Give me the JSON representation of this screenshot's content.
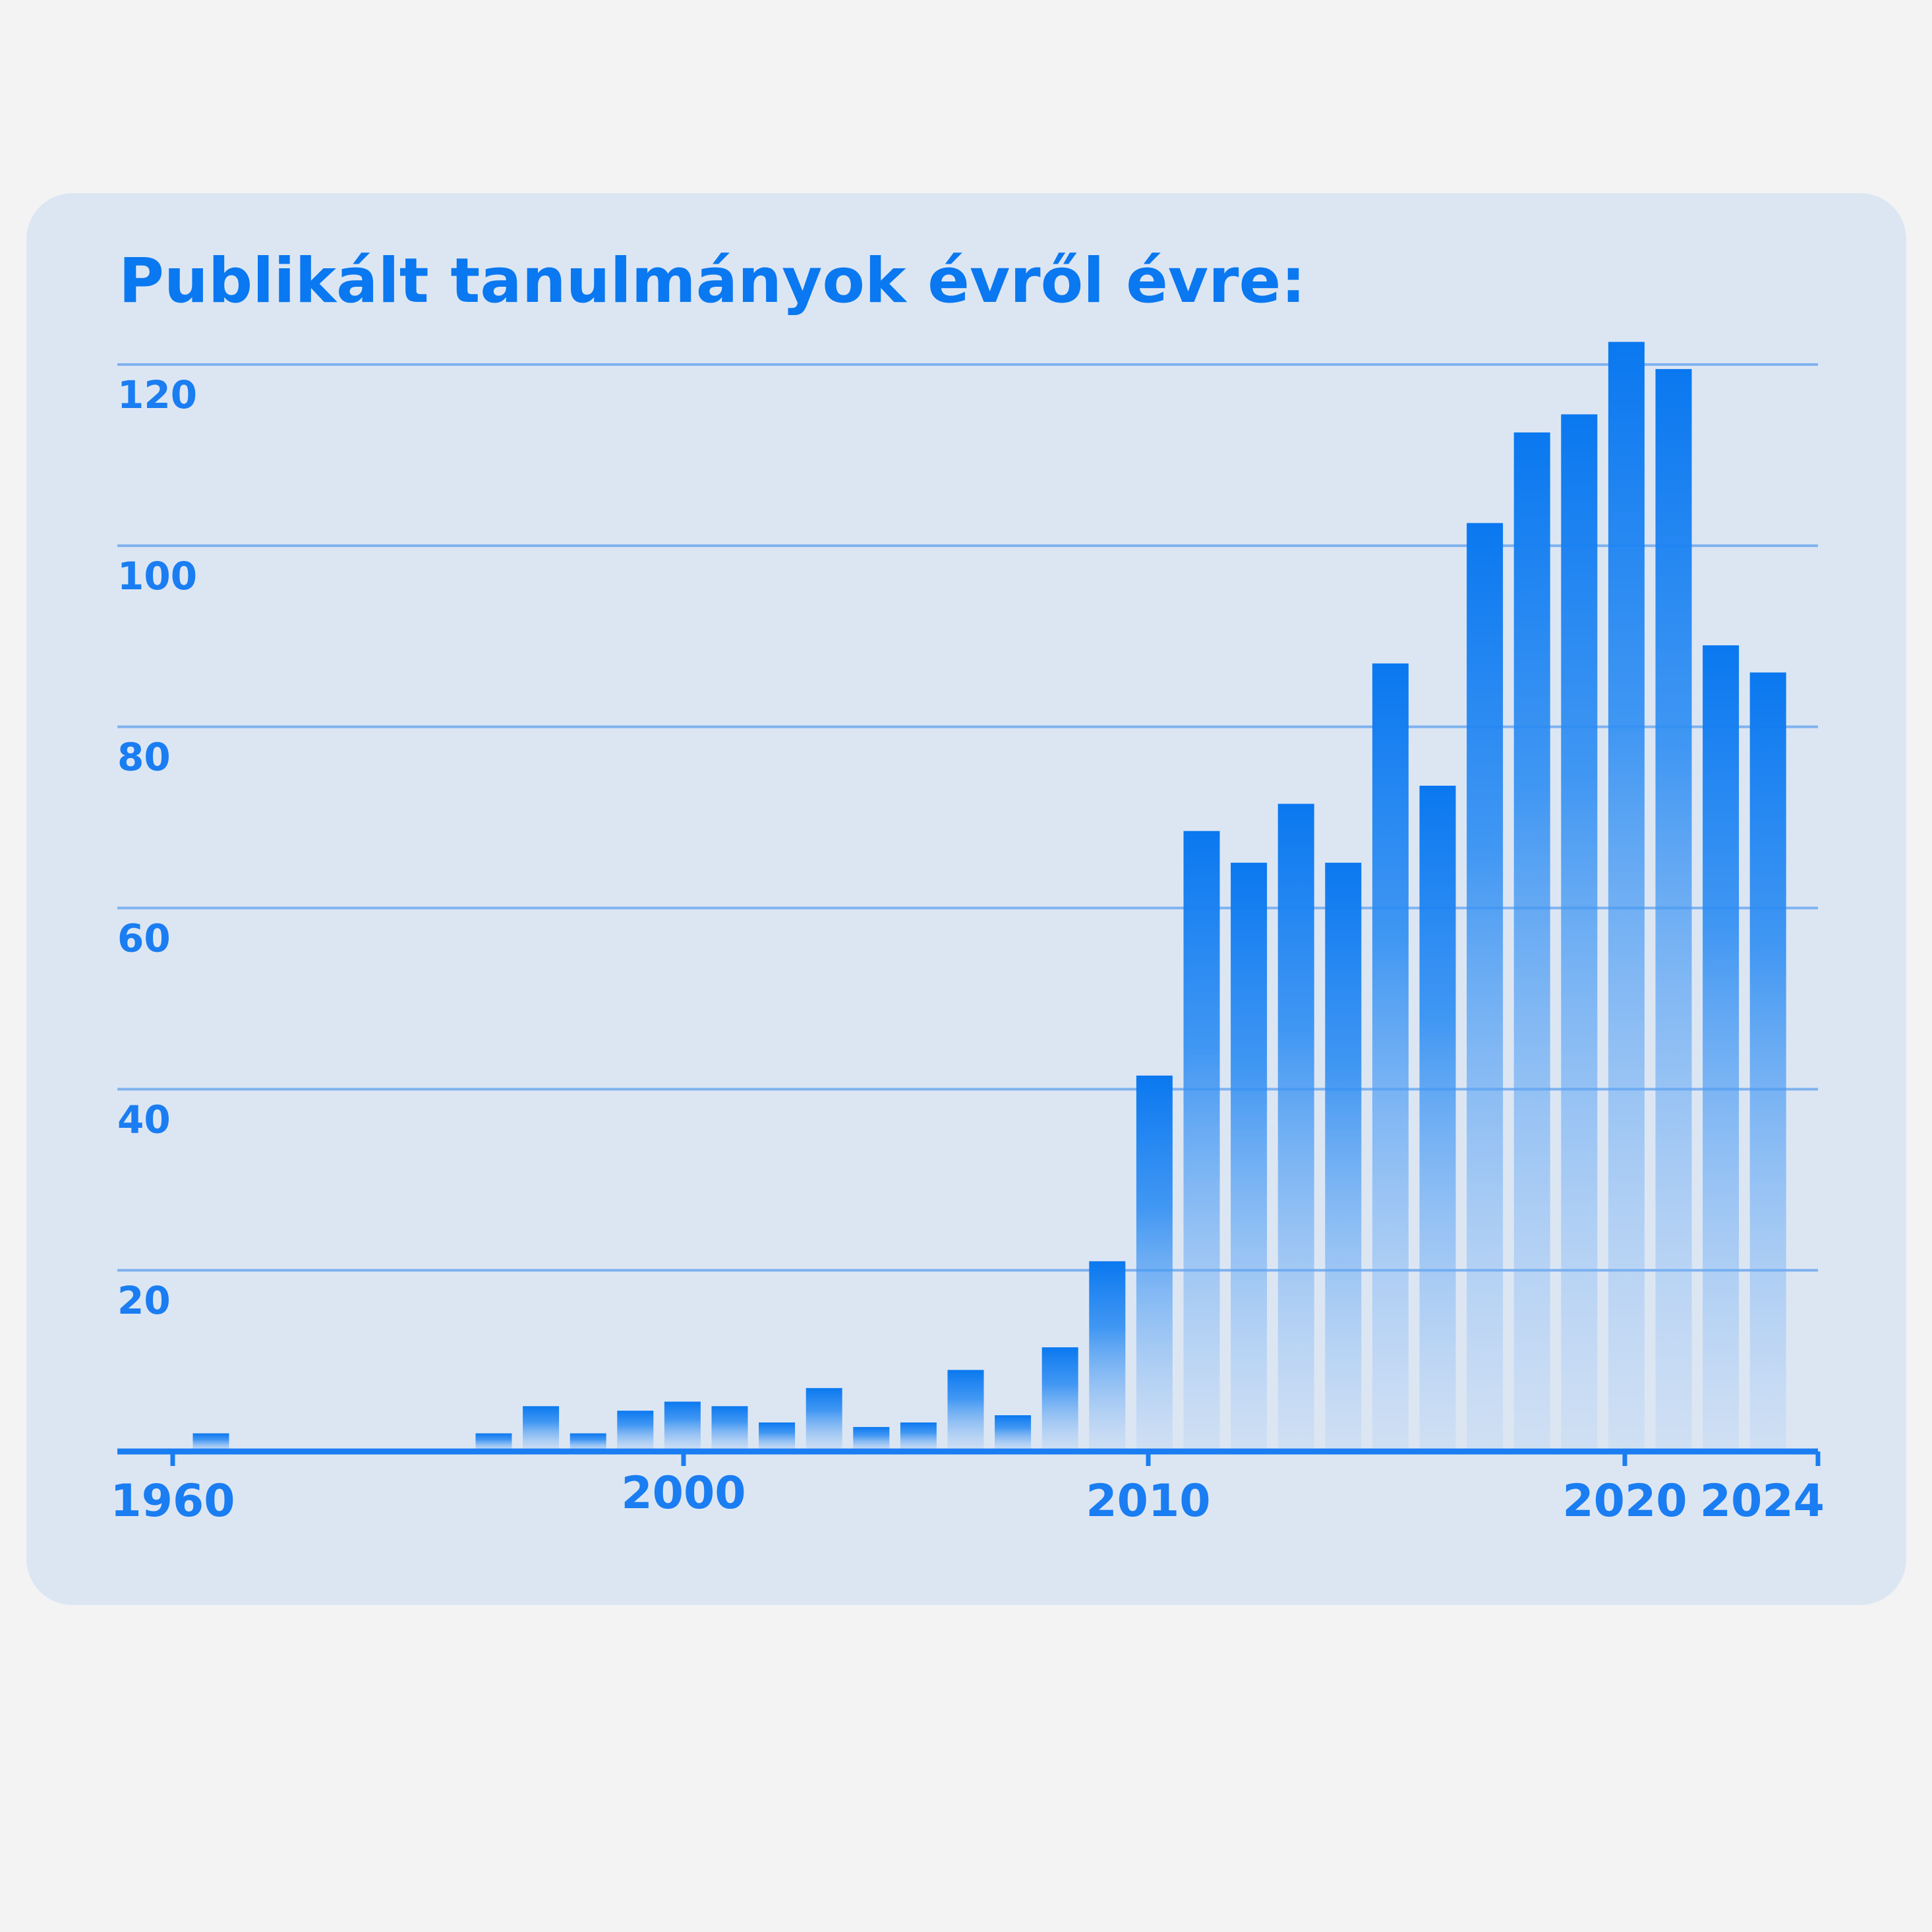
{
  "chart_data": {
    "type": "bar",
    "title": "Publikált tanulmányok évről évre:",
    "xlabel": "",
    "ylabel": "",
    "ylim": [
      0,
      120
    ],
    "yticks": [
      20,
      40,
      60,
      80,
      100,
      120
    ],
    "grid": true,
    "colors": {
      "bar": "#0a78f0",
      "grid": "#7fb2f0",
      "axis": "#1a7df2",
      "text": "#1a7df2"
    },
    "x_tick_labels": [
      "1960",
      "2000",
      "2010",
      "2020",
      "2024"
    ],
    "bars": [
      {
        "year": 1961,
        "value": 2
      },
      {
        "year": 1997,
        "value": 2
      },
      {
        "year": 1998,
        "value": 5
      },
      {
        "year": 1999,
        "value": 2
      },
      {
        "year": 2000,
        "value": 4.5
      },
      {
        "year": 2001,
        "value": 5.5
      },
      {
        "year": 2002,
        "value": 5
      },
      {
        "year": 2003,
        "value": 3.2
      },
      {
        "year": 2004,
        "value": 7
      },
      {
        "year": 2005,
        "value": 2.7
      },
      {
        "year": 2006,
        "value": 3.2
      },
      {
        "year": 2007,
        "value": 9
      },
      {
        "year": 2008,
        "value": 4
      },
      {
        "year": 2009,
        "value": 11.5
      },
      {
        "year": 2010,
        "value": 21
      },
      {
        "year": 2011,
        "value": 41.5
      },
      {
        "year": 2012,
        "value": 68.5
      },
      {
        "year": 2013,
        "value": 65
      },
      {
        "year": 2014,
        "value": 71.5
      },
      {
        "year": 2015,
        "value": 65
      },
      {
        "year": 2016,
        "value": 87
      },
      {
        "year": 2017,
        "value": 73.5
      },
      {
        "year": 2018,
        "value": 102.5
      },
      {
        "year": 2019,
        "value": 112.5
      },
      {
        "year": 2020,
        "value": 114.5
      },
      {
        "year": 2021,
        "value": 122.5
      },
      {
        "year": 2022,
        "value": 119.5
      },
      {
        "year": 2023,
        "value": 89
      },
      {
        "year": 2024,
        "value": 86
      }
    ]
  }
}
